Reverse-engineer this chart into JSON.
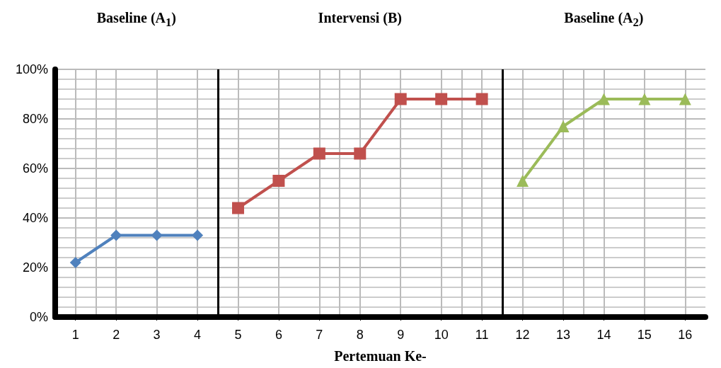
{
  "chart_data": {
    "type": "line",
    "xlabel": "Pertemuan Ke-",
    "annotations": [
      "Baseline (A$_{1}$)",
      "Intervensi (B)",
      "Baseline (A$_{2}$)"
    ],
    "x": [
      1,
      2,
      3,
      4,
      5,
      6,
      7,
      8,
      9,
      10,
      11,
      12,
      13,
      14,
      15,
      16
    ],
    "xlim": [
      0.5,
      16.5
    ],
    "xticks": [
      1,
      2,
      3,
      4,
      5,
      6,
      7,
      8,
      9,
      10,
      11,
      12,
      13,
      14,
      15,
      16
    ],
    "ylim": [
      0,
      100
    ],
    "yticks": [
      {
        "value": 0,
        "label": "0%"
      },
      {
        "value": 20,
        "label": "20%"
      },
      {
        "value": 40,
        "label": "40%"
      },
      {
        "value": 60,
        "label": "60%"
      },
      {
        "value": 80,
        "label": "80%"
      },
      {
        "value": 100,
        "label": "100%"
      }
    ],
    "series": [
      {
        "color": "#4f81bd",
        "marker": "diamond",
        "values": [
          22,
          33,
          33,
          33,
          null,
          null,
          null,
          null,
          null,
          null,
          null,
          null,
          null,
          null,
          null,
          null
        ]
      },
      {
        "color": "#c0504d",
        "marker": "square",
        "values": [
          null,
          null,
          null,
          null,
          44,
          55,
          66,
          66,
          88,
          88,
          88,
          null,
          null,
          null,
          null,
          null
        ]
      },
      {
        "color": "#9bbb59",
        "marker": "triangle",
        "values": [
          null,
          null,
          null,
          null,
          null,
          null,
          null,
          null,
          null,
          null,
          null,
          55,
          77,
          88,
          88,
          88
        ]
      }
    ],
    "ref_lines": [
      {
        "axis": "x",
        "value": 4.5,
        "color": "#000000"
      },
      {
        "axis": "x",
        "value": 11.5,
        "color": "#000000"
      }
    ],
    "grid": true,
    "line_style": "solid"
  }
}
